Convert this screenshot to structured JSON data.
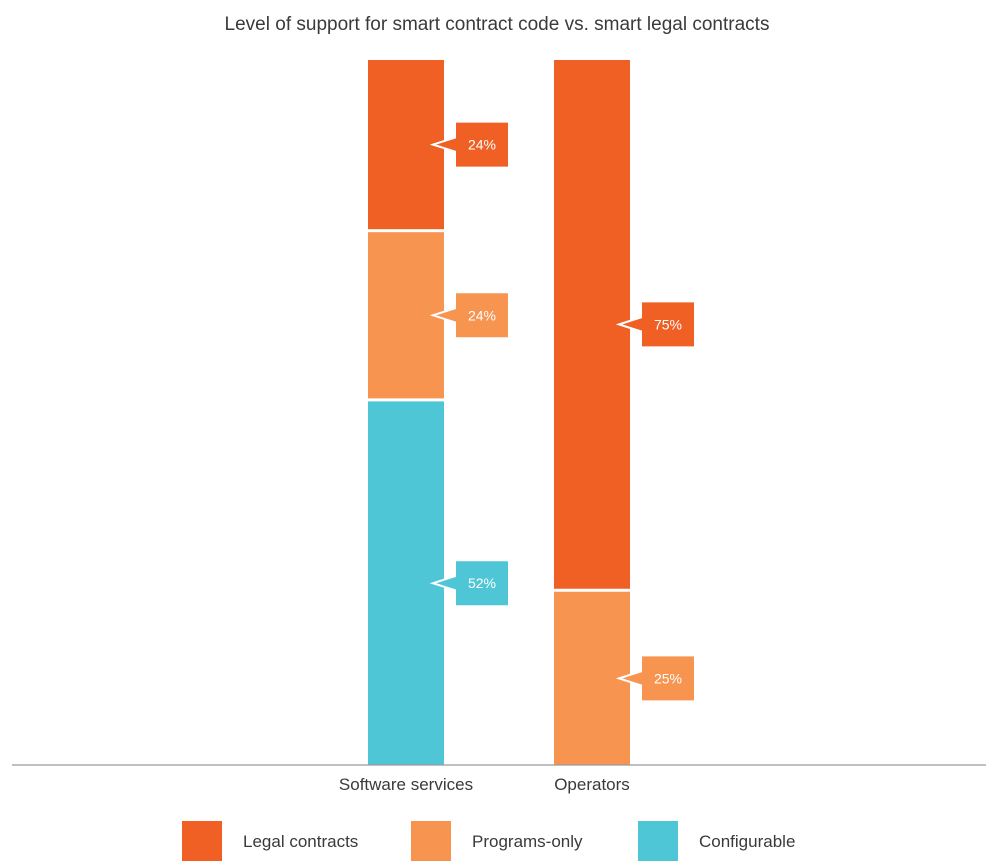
{
  "chart_data": {
    "type": "bar",
    "stacked": true,
    "orientation": "vertical",
    "title": "Level of support for smart contract code vs. smart legal contracts",
    "xlabel": "",
    "ylabel": "",
    "ylim": [
      0,
      100
    ],
    "value_unit": "%",
    "grid": false,
    "legend_position": "bottom",
    "categories": [
      "Software services",
      "Operators"
    ],
    "series": [
      {
        "name": "Configurable",
        "color": "#4ec6d6",
        "values": [
          52,
          0
        ],
        "labels": [
          "52%",
          ""
        ]
      },
      {
        "name": "Programs-only",
        "color": "#f79450",
        "values": [
          24,
          25
        ],
        "labels": [
          "24%",
          "25%"
        ]
      },
      {
        "name": "Legal contracts",
        "color": "#f06025",
        "values": [
          24,
          75
        ],
        "labels": [
          "24%",
          "75%"
        ]
      }
    ],
    "legend": [
      {
        "name": "Legal contracts",
        "color": "#f06025"
      },
      {
        "name": "Programs-only",
        "color": "#f79450"
      },
      {
        "name": "Configurable",
        "color": "#4ec6d6"
      }
    ]
  }
}
